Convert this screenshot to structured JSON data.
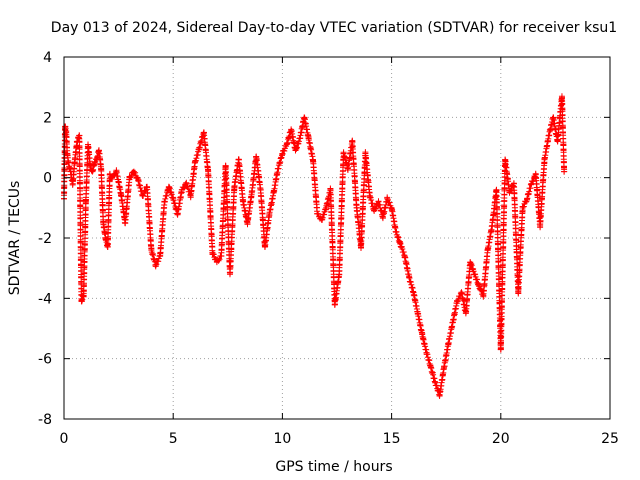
{
  "chart_data": {
    "type": "scatter",
    "title": "Day 013 of 2024, Sidereal Day-to-day VTEC variation (SDTVAR) for receiver ksu1",
    "xlabel": "GPS time / hours",
    "ylabel": "SDTVAR / TECUs",
    "xlim": [
      0,
      25
    ],
    "ylim": [
      -8,
      4
    ],
    "xticks": [
      0,
      5,
      10,
      15,
      20,
      25
    ],
    "xtick_labels": [
      "0",
      "5",
      "10",
      "15",
      "20",
      "25"
    ],
    "yticks": [
      -8,
      -6,
      -4,
      -2,
      0,
      2,
      4
    ],
    "ytick_labels": [
      "-8",
      "-6",
      "-4",
      "-2",
      "0",
      "2",
      "4"
    ],
    "grid": true,
    "marker": "+",
    "series": [
      {
        "name": "SDTVAR",
        "color": "#ff0000",
        "x": [
          0.0,
          0.05,
          0.1,
          0.15,
          0.2,
          0.3,
          0.4,
          0.5,
          0.6,
          0.7,
          0.8,
          0.9,
          1.0,
          1.1,
          1.2,
          1.3,
          1.4,
          1.5,
          1.6,
          1.7,
          1.8,
          1.9,
          2.0,
          2.1,
          2.2,
          2.4,
          2.6,
          2.8,
          3.0,
          3.2,
          3.4,
          3.6,
          3.8,
          4.0,
          4.2,
          4.4,
          4.6,
          4.8,
          5.0,
          5.2,
          5.4,
          5.6,
          5.8,
          6.0,
          6.2,
          6.4,
          6.6,
          6.8,
          7.0,
          7.2,
          7.4,
          7.6,
          7.8,
          8.0,
          8.2,
          8.4,
          8.6,
          8.8,
          9.0,
          9.2,
          9.4,
          9.6,
          9.8,
          10.0,
          10.2,
          10.4,
          10.6,
          10.8,
          11.0,
          11.2,
          11.4,
          11.6,
          11.8,
          12.0,
          12.2,
          12.4,
          12.6,
          12.8,
          13.0,
          13.2,
          13.4,
          13.6,
          13.8,
          14.0,
          14.2,
          14.4,
          14.6,
          14.8,
          15.0,
          15.2,
          15.4,
          15.6,
          15.8,
          16.0,
          16.2,
          16.4,
          16.6,
          16.8,
          17.0,
          17.2,
          17.4,
          17.6,
          17.8,
          18.0,
          18.2,
          18.4,
          18.6,
          18.8,
          19.0,
          19.2,
          19.4,
          19.6,
          19.8,
          20.0,
          20.2,
          20.4,
          20.6,
          20.8,
          21.0,
          21.2,
          21.4,
          21.6,
          21.8,
          22.0,
          22.2,
          22.4,
          22.6,
          22.8,
          22.9
        ],
        "y": [
          -0.7,
          1.7,
          1.5,
          0.8,
          0.5,
          0.2,
          -0.2,
          0.6,
          1.2,
          1.4,
          -4.1,
          -3.9,
          -0.8,
          1.1,
          0.4,
          0.2,
          0.5,
          0.6,
          0.9,
          0.3,
          -1.5,
          -2.0,
          -2.3,
          0.1,
          0.0,
          0.2,
          -0.5,
          -1.5,
          0.0,
          0.2,
          -0.1,
          -0.6,
          -0.3,
          -2.4,
          -2.9,
          -2.6,
          -0.8,
          -0.3,
          -0.7,
          -1.2,
          -0.4,
          -0.2,
          -0.6,
          0.5,
          1.0,
          1.5,
          0.2,
          -2.5,
          -2.8,
          -2.6,
          0.4,
          -3.2,
          -0.3,
          0.6,
          -0.8,
          -1.5,
          -0.5,
          0.7,
          -0.4,
          -2.3,
          -1.2,
          -0.5,
          0.3,
          0.8,
          1.1,
          1.6,
          0.9,
          1.3,
          2.0,
          1.3,
          0.6,
          -1.2,
          -1.4,
          -1.0,
          -0.4,
          -4.2,
          -3.2,
          0.8,
          0.3,
          1.2,
          -1.0,
          -2.3,
          0.8,
          -0.6,
          -1.1,
          -0.8,
          -1.3,
          -0.7,
          -1.0,
          -1.8,
          -2.2,
          -2.6,
          -3.3,
          -3.8,
          -4.5,
          -5.2,
          -5.8,
          -6.3,
          -6.8,
          -7.2,
          -6.3,
          -5.5,
          -4.8,
          -4.1,
          -3.8,
          -4.5,
          -2.8,
          -3.2,
          -3.6,
          -3.9,
          -2.4,
          -1.6,
          -0.4,
          -5.7,
          0.6,
          -0.5,
          -0.2,
          -3.8,
          -1.0,
          -0.7,
          -0.2,
          0.1,
          -1.6,
          0.6,
          1.4,
          2.0,
          1.2,
          2.7,
          0.2
        ]
      }
    ]
  }
}
